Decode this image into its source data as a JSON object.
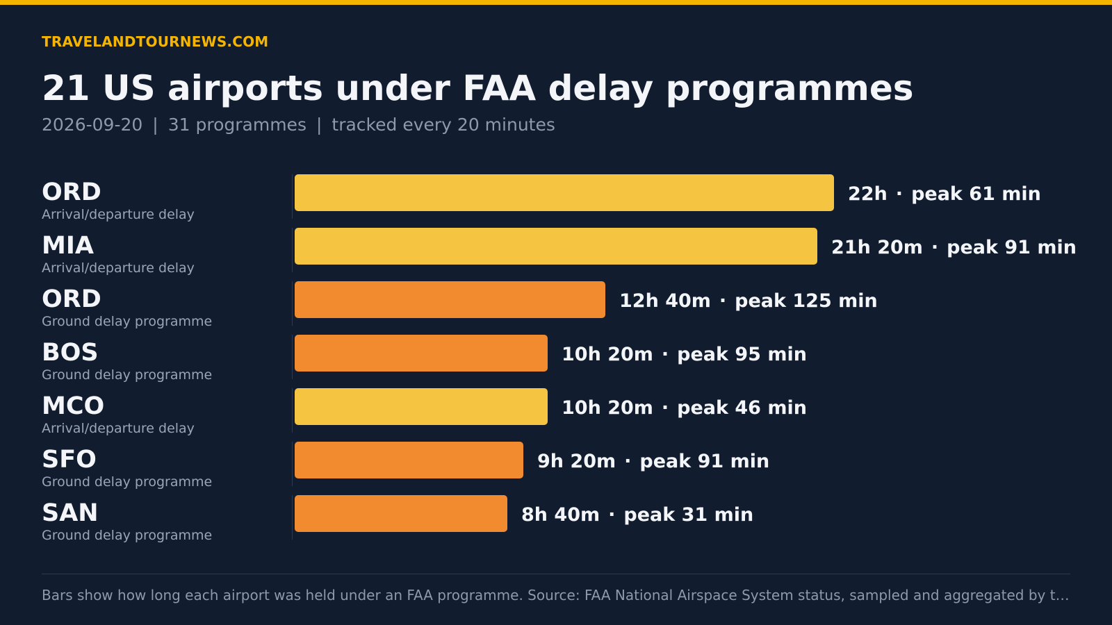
{
  "header": {
    "brand": "TRAVELANDTOURNEWS.COM",
    "title": "21 US airports under FAA delay programmes",
    "subtitle_date": "2026-09-20",
    "subtitle_programmes": "31 programmes",
    "subtitle_tracking": "tracked every 20 minutes",
    "subtitle_separator": "|"
  },
  "colors": {
    "accent": "#f5b400",
    "arrival_departure_delay": "#f5c542",
    "ground_delay_programme": "#f28a30",
    "background": "#111c2e"
  },
  "chart_data": {
    "type": "bar",
    "orientation": "horizontal",
    "value_unit": "minutes",
    "xlim": [
      0,
      1320
    ],
    "bars": [
      {
        "code": "ORD",
        "program": "Arrival/departure delay",
        "duration_label": "22h",
        "duration_minutes": 1320,
        "peak_label": "peak 61 min",
        "peak_minutes": 61
      },
      {
        "code": "MIA",
        "program": "Arrival/departure delay",
        "duration_label": "21h 20m",
        "duration_minutes": 1280,
        "peak_label": "peak 91 min",
        "peak_minutes": 91
      },
      {
        "code": "ORD",
        "program": "Ground delay programme",
        "duration_label": "12h 40m",
        "duration_minutes": 760,
        "peak_label": "peak 125 min",
        "peak_minutes": 125
      },
      {
        "code": "BOS",
        "program": "Ground delay programme",
        "duration_label": "10h 20m",
        "duration_minutes": 620,
        "peak_label": "peak 95 min",
        "peak_minutes": 95
      },
      {
        "code": "MCO",
        "program": "Arrival/departure delay",
        "duration_label": "10h 20m",
        "duration_minutes": 620,
        "peak_label": "peak 46 min",
        "peak_minutes": 46
      },
      {
        "code": "SFO",
        "program": "Ground delay programme",
        "duration_label": "9h 20m",
        "duration_minutes": 560,
        "peak_label": "peak 91 min",
        "peak_minutes": 91
      },
      {
        "code": "SAN",
        "program": "Ground delay programme",
        "duration_label": "8h 40m",
        "duration_minutes": 520,
        "peak_label": "peak 31 min",
        "peak_minutes": 31
      }
    ]
  },
  "footer": {
    "note": "Bars show how long each airport was held under an FAA programme. Source: FAA National Airspace System status, sampled and aggregated by travelandtour…"
  }
}
